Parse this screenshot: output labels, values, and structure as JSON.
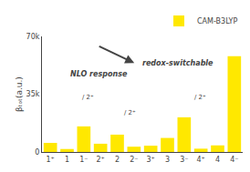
{
  "chart_data": {
    "type": "bar",
    "categories": [
      "1⁺",
      "1",
      "1⁻",
      "2⁺",
      "2",
      "2⁻",
      "3⁺",
      "3",
      "3⁻",
      "4⁺",
      "4",
      "4⁻"
    ],
    "series": [
      {
        "name": "CAM-B3LYP",
        "color": "#FFE800",
        "values": [
          5500,
          1800,
          15500,
          5000,
          10500,
          3200,
          3800,
          8500,
          21000,
          2000,
          4000,
          58000
        ]
      }
    ],
    "ylabel": "βₜₒₜ(a.u.)",
    "ylim": [
      0,
      70000
    ],
    "yticks": [
      0,
      {
        "value": 35000,
        "label": "35k"
      },
      {
        "value": 70000,
        "label": "70k"
      }
    ],
    "grid": false,
    "legend": "upper right",
    "annotations": [
      "NLO response",
      "redox-switchable",
      "/ 2⁺",
      "/ 2⁺",
      "/ 2⁺"
    ]
  }
}
